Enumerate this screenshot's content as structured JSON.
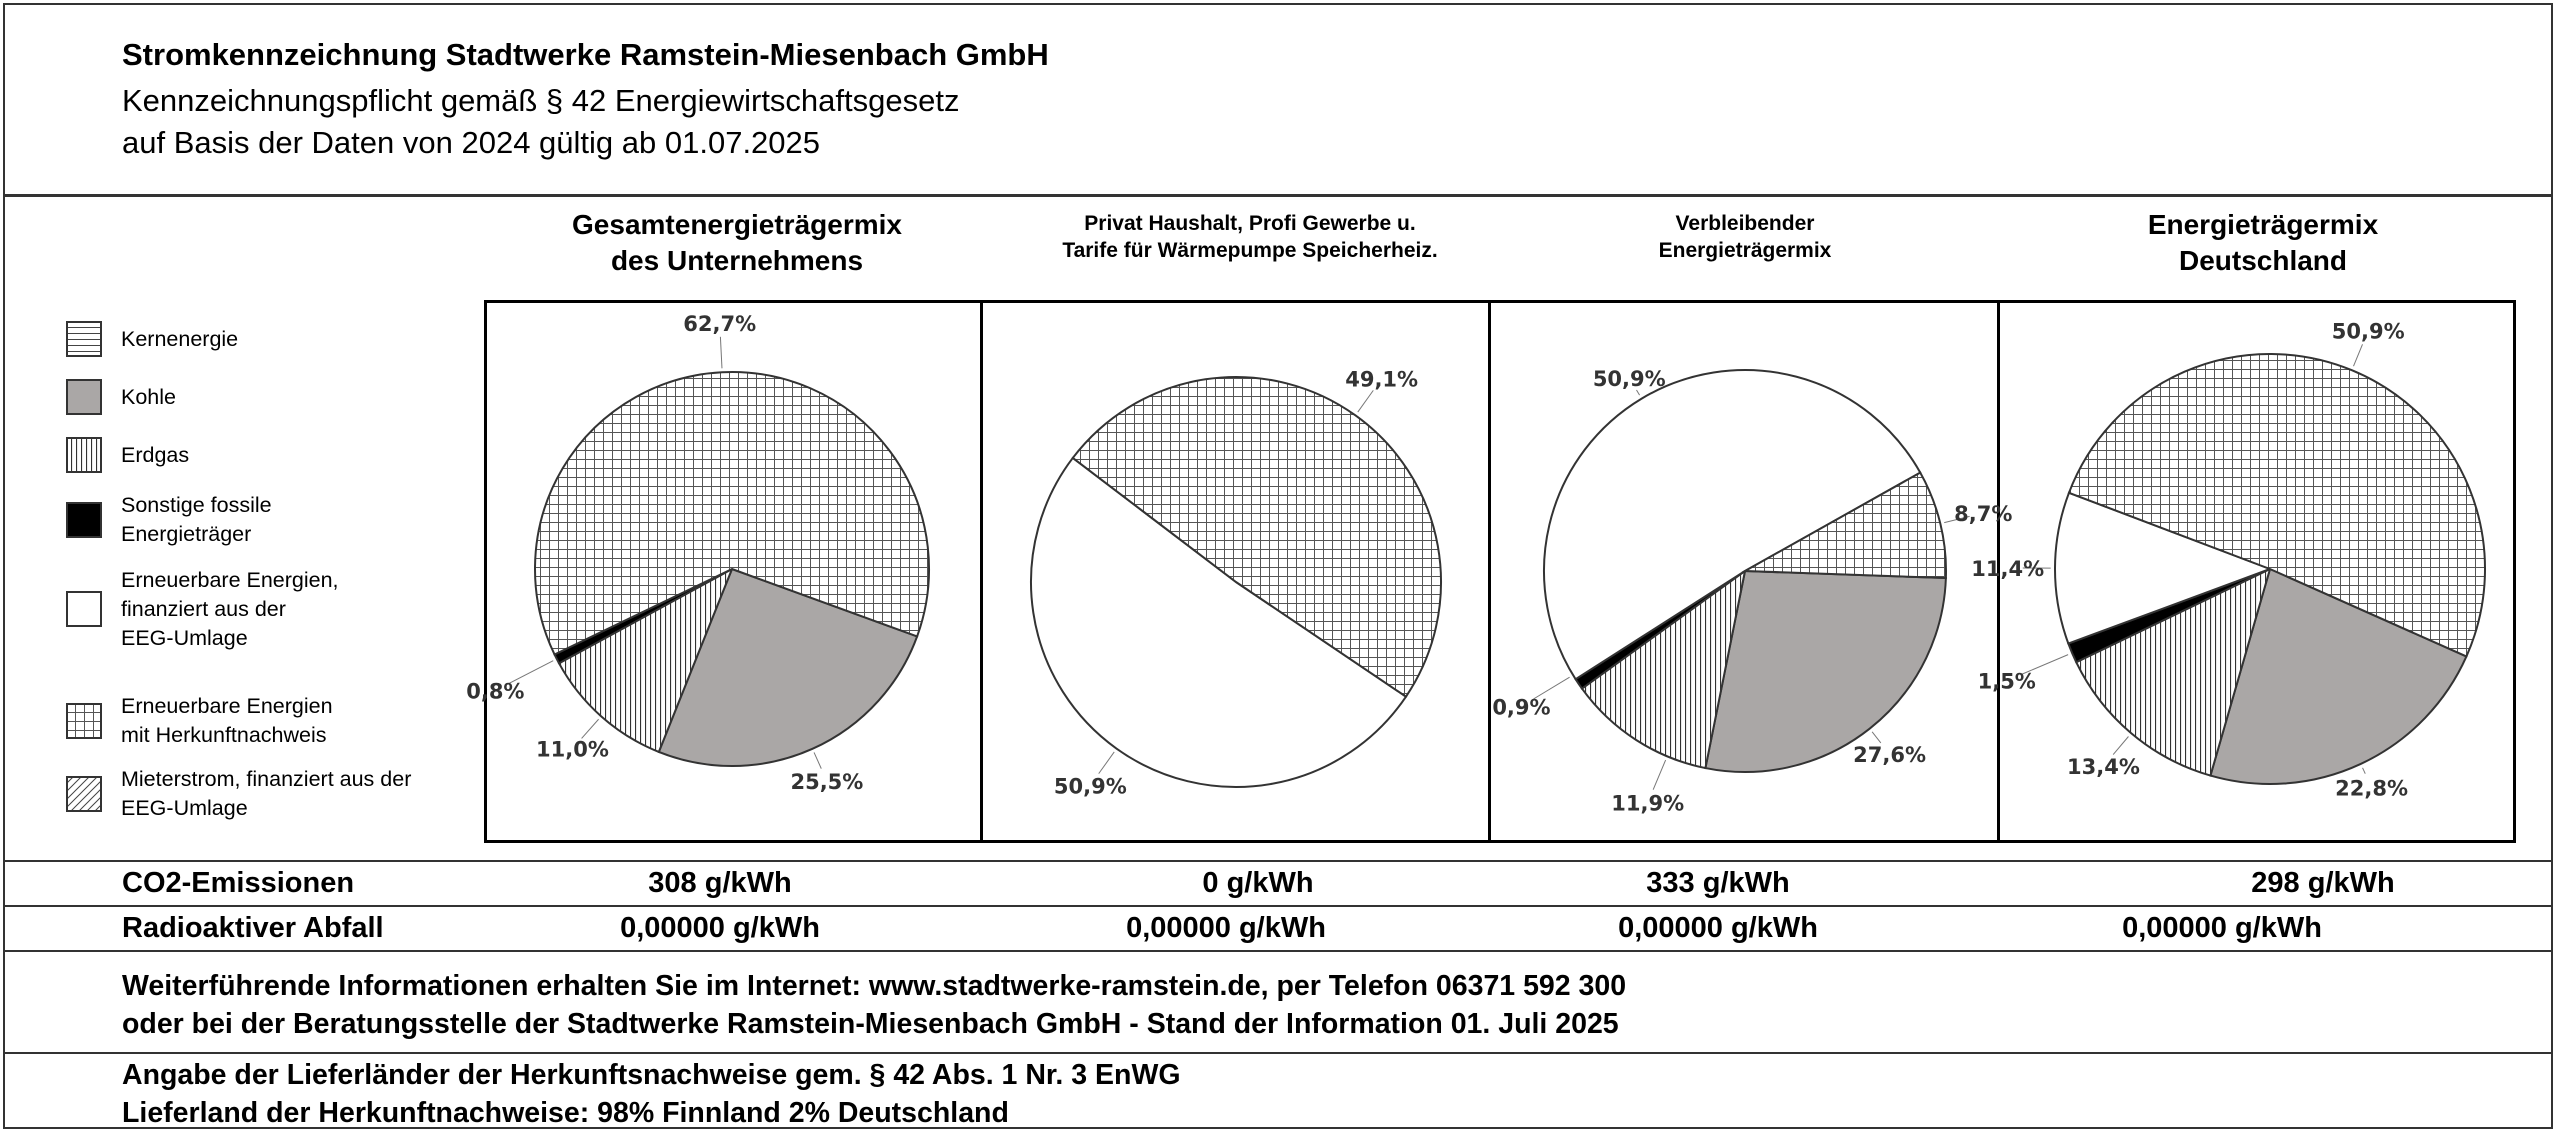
{
  "header": {
    "title": "Stromkennzeichnung Stadtwerke Ramstein-Miesenbach GmbH",
    "subtitle1": "Kennzeichnungspflicht gemäß § 42 Energiewirtschaftsgesetz",
    "subtitle2": "auf Basis der Daten von 2024 gültig ab 01.07.2025"
  },
  "legend": [
    {
      "key": "kern",
      "label": [
        "Kernenergie"
      ],
      "pattern": "horizontal-lines"
    },
    {
      "key": "kohle",
      "label": [
        "Kohle"
      ],
      "pattern": "solid-gray"
    },
    {
      "key": "erdgas",
      "label": [
        "Erdgas"
      ],
      "pattern": "vertical-lines"
    },
    {
      "key": "sonstige",
      "label": [
        "Sonstige fossile",
        "Energieträger"
      ],
      "pattern": "solid-black"
    },
    {
      "key": "eeg",
      "label": [
        "Erneuerbare Energien,",
        "finanziert aus der",
        "EEG-Umlage"
      ],
      "pattern": "white"
    },
    {
      "key": "hkn",
      "label": [
        "Erneuerbare Energien",
        "mit Herkunftnachweis"
      ],
      "pattern": "grid"
    },
    {
      "key": "mieter",
      "label": [
        "Mieterstrom, finanziert aus der",
        "EEG-Umlage"
      ],
      "pattern": "diagonal-lines"
    }
  ],
  "chart_data": [
    {
      "type": "pie",
      "title": [
        "Gesamtenergieträgermix",
        "des Unternehmens"
      ],
      "slices": [
        {
          "category": "Kohle",
          "value": 25.5,
          "label": "25,5%"
        },
        {
          "category": "Erdgas",
          "value": 11.0,
          "label": "11,0%"
        },
        {
          "category": "Sonstige fossile Energieträger",
          "value": 0.8,
          "label": "0,8%"
        },
        {
          "category": "Erneuerbare Energien mit Herkunftnachweis",
          "value": 62.7,
          "label": "62,7%"
        }
      ],
      "co2": "308 g/kWh",
      "waste": "0,00000 g/kWh"
    },
    {
      "type": "pie",
      "title": [
        "Privat Haushalt, Profi Gewerbe u.",
        "Tarife für Wärmepumpe Speicherheiz."
      ],
      "slices": [
        {
          "category": "Erneuerbare Energien, finanziert aus der EEG-Umlage",
          "value": 50.9,
          "label": "50,9%"
        },
        {
          "category": "Erneuerbare Energien mit Herkunftnachweis",
          "value": 49.1,
          "label": "49,1%"
        }
      ],
      "co2": "0 g/kWh",
      "waste": "0,00000 g/kWh"
    },
    {
      "type": "pie",
      "title": [
        "Verbleibender",
        "Energieträgermix"
      ],
      "slices": [
        {
          "category": "Kohle",
          "value": 27.6,
          "label": "27,6%"
        },
        {
          "category": "Erdgas",
          "value": 11.9,
          "label": "11,9%"
        },
        {
          "category": "Sonstige fossile Energieträger",
          "value": 0.9,
          "label": "0,9%"
        },
        {
          "category": "Erneuerbare Energien, finanziert aus der EEG-Umlage",
          "value": 50.9,
          "label": "50,9%"
        },
        {
          "category": "Erneuerbare Energien mit Herkunftnachweis",
          "value": 8.7,
          "label": "8,7%"
        }
      ],
      "co2": "333 g/kWh",
      "waste": "0,00000 g/kWh"
    },
    {
      "type": "pie",
      "title": [
        "Energieträgermix",
        "Deutschland"
      ],
      "slices": [
        {
          "category": "Kohle",
          "value": 22.8,
          "label": "22,8%"
        },
        {
          "category": "Erdgas",
          "value": 13.4,
          "label": "13,4%"
        },
        {
          "category": "Sonstige fossile Energieträger",
          "value": 1.5,
          "label": "1,5%"
        },
        {
          "category": "Erneuerbare Energien, finanziert aus der EEG-Umlage",
          "value": 11.4,
          "label": "11,4%"
        },
        {
          "category": "Erneuerbare Energien mit Herkunftnachweis",
          "value": 50.9,
          "label": "50,9%"
        }
      ],
      "co2": "298 g/kWh",
      "waste": "0,00000 g/kWh"
    }
  ],
  "rows": {
    "co2_label": "CO2-Emissionen",
    "waste_label": "Radioaktiver Abfall"
  },
  "footer": {
    "info1": "Weiterführende Informationen erhalten Sie im Internet: www.stadtwerke-ramstein.de, per Telefon 06371 592 300",
    "info2": "oder bei der Beratungsstelle der Stadtwerke Ramstein-Miesenbach GmbH - Stand der Information 01. Juli 2025",
    "origin1": "Angabe der Lieferländer der Herkunftsnachweise gem. § 42 Abs. 1 Nr. 3 EnWG",
    "origin2": "Lieferland der Herkunftnachweise: 98% Finnland 2% Deutschland"
  },
  "colors": {
    "kohle": "#aaa7a6",
    "sonstige": "#000000",
    "line": "#333333"
  }
}
